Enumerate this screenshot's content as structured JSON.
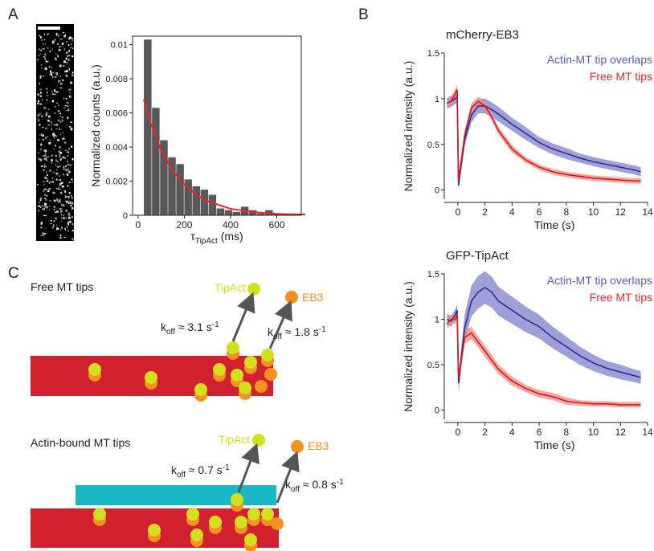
{
  "panel_labels": [
    "A",
    "B",
    "C"
  ],
  "chart_data": [
    {
      "type": "histogram",
      "ylabel": "Normalized counts (a.u.)",
      "xlabel": {
        "symbol": "τ",
        "subscript": "TipAct",
        "unit": "(ms)"
      },
      "bins": [
        25,
        60,
        95,
        130,
        165,
        200,
        235,
        270,
        305,
        340,
        375,
        410,
        445,
        480,
        515,
        550,
        585,
        620,
        655,
        690,
        725
      ],
      "values": [
        0.0103,
        0.0063,
        0.0044,
        0.0034,
        0.003,
        0.0021,
        0.0017,
        0.0015,
        0.0012,
        0.0004,
        0.0003,
        0.0002,
        0.0005,
        0.0003,
        0.0001,
        0.0003,
        0.0001,
        0.0001,
        0.0001,
        0.0001
      ],
      "color": "#595959",
      "curve": {
        "color": "#e8262b",
        "x": [
          25,
          50,
          100,
          150,
          200,
          250,
          300,
          400,
          500,
          600,
          700
        ],
        "values": [
          0.0068,
          0.0056,
          0.0038,
          0.0026,
          0.0018,
          0.0012,
          0.00082,
          0.00038,
          0.00018,
          8e-05,
          4e-05
        ]
      },
      "xlim": [
        -24,
        706
      ],
      "ylim": [
        0,
        0.0105
      ],
      "xticks": [
        0,
        200,
        400,
        600
      ],
      "yticks": [
        0,
        0.002,
        0.004,
        0.006,
        0.008,
        0.01
      ]
    },
    {
      "type": "line",
      "title": "mCherry-EB3",
      "ylabel": "Normalized intensity (a.u.)",
      "xlabel": "Time (s)",
      "x": [
        -0.8,
        -0.5,
        -0.2,
        -0.05,
        0.05,
        0.5,
        1,
        1.5,
        2,
        2.5,
        3,
        4,
        5,
        6,
        7,
        8,
        9,
        10,
        11,
        12,
        13,
        13.5
      ],
      "series": [
        {
          "name": "Actin-MT tip overlaps",
          "color": "#2e2e8c",
          "band_color": "#7f7fcc",
          "values": [
            0.95,
            0.97,
            1.0,
            1.02,
            0.05,
            0.55,
            0.82,
            0.92,
            0.92,
            0.88,
            0.83,
            0.72,
            0.62,
            0.52,
            0.45,
            0.4,
            0.35,
            0.31,
            0.28,
            0.25,
            0.22,
            0.2
          ],
          "errors": [
            0.06,
            0.06,
            0.06,
            0.06,
            0.04,
            0.07,
            0.08,
            0.08,
            0.08,
            0.08,
            0.08,
            0.07,
            0.07,
            0.06,
            0.06,
            0.06,
            0.05,
            0.05,
            0.05,
            0.05,
            0.05,
            0.05
          ]
        },
        {
          "name": "Free MT tips",
          "color": "#d7191c",
          "band_color": "#f08a80",
          "values": [
            0.95,
            0.97,
            1.05,
            1.1,
            0.1,
            0.6,
            0.9,
            0.97,
            0.92,
            0.8,
            0.65,
            0.45,
            0.33,
            0.25,
            0.2,
            0.17,
            0.15,
            0.13,
            0.12,
            0.11,
            0.1,
            0.1
          ],
          "errors": [
            0.05,
            0.05,
            0.05,
            0.05,
            0.03,
            0.05,
            0.05,
            0.05,
            0.05,
            0.04,
            0.04,
            0.04,
            0.03,
            0.03,
            0.03,
            0.03,
            0.03,
            0.03,
            0.03,
            0.03,
            0.03,
            0.03
          ]
        }
      ],
      "legend": "upper right",
      "xlim": [
        -1,
        14
      ],
      "ylim": [
        -0.1,
        1.5
      ],
      "xticks": [
        0,
        2,
        4,
        6,
        8,
        10,
        12,
        14
      ],
      "yticks": [
        0,
        0.5,
        1,
        1.5
      ]
    },
    {
      "type": "line",
      "title": "GFP-TipAct",
      "ylabel": "Normalized intensity (a.u.)",
      "xlabel": "Time (s)",
      "x": [
        -0.8,
        -0.5,
        -0.2,
        -0.05,
        0.05,
        0.5,
        1,
        1.5,
        2,
        2.5,
        3,
        4,
        5,
        6,
        7,
        8,
        9,
        10,
        11,
        12,
        13,
        13.5
      ],
      "series": [
        {
          "name": "Actin-MT tip overlaps",
          "color": "#2e2e8c",
          "band_color": "#7f7fcc",
          "values": [
            1.0,
            0.98,
            1.05,
            1.1,
            0.3,
            0.9,
            1.2,
            1.3,
            1.35,
            1.3,
            1.2,
            1.1,
            1.0,
            0.92,
            0.8,
            0.7,
            0.6,
            0.52,
            0.46,
            0.42,
            0.38,
            0.36
          ],
          "errors": [
            0.06,
            0.06,
            0.06,
            0.06,
            0.1,
            0.15,
            0.17,
            0.18,
            0.18,
            0.17,
            0.16,
            0.15,
            0.14,
            0.13,
            0.12,
            0.11,
            0.1,
            0.09,
            0.08,
            0.08,
            0.07,
            0.07
          ]
        },
        {
          "name": "Free MT tips",
          "color": "#d7191c",
          "band_color": "#f08a80",
          "values": [
            0.95,
            1.0,
            1.0,
            1.05,
            0.35,
            0.8,
            0.85,
            0.75,
            0.65,
            0.55,
            0.45,
            0.32,
            0.24,
            0.18,
            0.15,
            0.1,
            0.08,
            0.07,
            0.07,
            0.06,
            0.06,
            0.06
          ],
          "errors": [
            0.05,
            0.05,
            0.05,
            0.05,
            0.05,
            0.07,
            0.07,
            0.06,
            0.06,
            0.06,
            0.05,
            0.05,
            0.04,
            0.04,
            0.04,
            0.04,
            0.03,
            0.03,
            0.03,
            0.03,
            0.03,
            0.03
          ]
        }
      ],
      "legend": "upper right",
      "xlim": [
        -1,
        14
      ],
      "ylim": [
        -0.1,
        1.5
      ],
      "xticks": [
        0,
        2,
        4,
        6,
        8,
        10,
        12,
        14
      ],
      "yticks": [
        0,
        0.5,
        1,
        1.5
      ]
    }
  ],
  "diagram": {
    "scenes": [
      {
        "title": "Free MT tips",
        "labels": [
          "TipAct",
          "EB3"
        ],
        "rates": [
          {
            "k": "k",
            "sub": "off",
            "mid": " ≈ 3.1 s",
            "sup": "-1"
          },
          {
            "k": "k",
            "sub": "off",
            "mid": " ≈ 1.8 s",
            "sup": "-1"
          }
        ]
      },
      {
        "title": "Actin-bound MT tips",
        "labels": [
          "TipAct",
          "EB3"
        ],
        "rates": [
          {
            "k": "k",
            "sub": "off",
            "mid": " ≈ 0.7 s",
            "sup": "-1"
          },
          {
            "k": "k",
            "sub": "off",
            "mid": " ≈ 0.8 s",
            "sup": "-1"
          }
        ]
      }
    ]
  }
}
